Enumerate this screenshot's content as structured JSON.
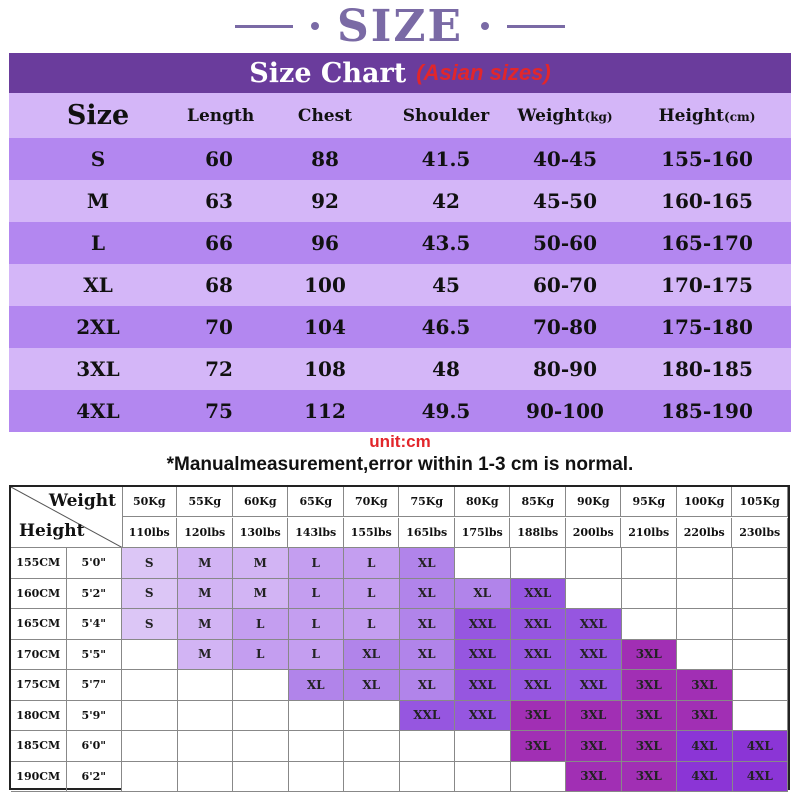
{
  "header": {
    "title": "SIZE"
  },
  "chart": {
    "title": "Size Chart",
    "subtitle": "(Asian sizes)",
    "columns": [
      "Size",
      "Length",
      "Chest",
      "Shoulder",
      "Weight",
      "Height"
    ],
    "column_units": {
      "weight": "(kg)",
      "height": "(cm)"
    },
    "rows": [
      [
        "S",
        "60",
        "88",
        "41.5",
        "40-45",
        "155-160"
      ],
      [
        "M",
        "63",
        "92",
        "42",
        "45-50",
        "160-165"
      ],
      [
        "L",
        "66",
        "96",
        "43.5",
        "50-60",
        "165-170"
      ],
      [
        "XL",
        "68",
        "100",
        "45",
        "60-70",
        "170-175"
      ],
      [
        "2XL",
        "70",
        "104",
        "46.5",
        "70-80",
        "175-180"
      ],
      [
        "3XL",
        "72",
        "108",
        "48",
        "80-90",
        "180-185"
      ],
      [
        "4XL",
        "75",
        "112",
        "49.5",
        "90-100",
        "185-190"
      ]
    ],
    "unit_note": "unit:cm",
    "measurement_note": "*Manualmeasurement,error within 1-3 cm is normal."
  },
  "grid": {
    "corner_weight": "Weight",
    "corner_height": "Height",
    "weights_kg": [
      "50Kg",
      "55Kg",
      "60Kg",
      "65Kg",
      "70Kg",
      "75Kg",
      "80Kg",
      "85Kg",
      "90Kg",
      "95Kg",
      "100Kg",
      "105Kg"
    ],
    "weights_lbs": [
      "110lbs",
      "120lbs",
      "130lbs",
      "143lbs",
      "155lbs",
      "165lbs",
      "175lbs",
      "188lbs",
      "200lbs",
      "210lbs",
      "220lbs",
      "230lbs"
    ],
    "rows": [
      {
        "cm": "155CM",
        "ft": "5'0\"",
        "sizes": [
          "S",
          "M",
          "M",
          "L",
          "L",
          "XL",
          "",
          "",
          "",
          "",
          "",
          ""
        ]
      },
      {
        "cm": "160CM",
        "ft": "5'2\"",
        "sizes": [
          "S",
          "M",
          "M",
          "L",
          "L",
          "XL",
          "XL",
          "XXL",
          "",
          "",
          "",
          ""
        ]
      },
      {
        "cm": "165CM",
        "ft": "5'4\"",
        "sizes": [
          "S",
          "M",
          "L",
          "L",
          "L",
          "XL",
          "XXL",
          "XXL",
          "XXL",
          "",
          "",
          ""
        ]
      },
      {
        "cm": "170CM",
        "ft": "5'5\"",
        "sizes": [
          "",
          "M",
          "L",
          "L",
          "XL",
          "XL",
          "XXL",
          "XXL",
          "XXL",
          "3XL",
          "",
          ""
        ]
      },
      {
        "cm": "175CM",
        "ft": "5'7\"",
        "sizes": [
          "",
          "",
          "",
          "XL",
          "XL",
          "XL",
          "XXL",
          "XXL",
          "XXL",
          "3XL",
          "3XL",
          ""
        ]
      },
      {
        "cm": "180CM",
        "ft": "5'9\"",
        "sizes": [
          "",
          "",
          "",
          "",
          "",
          "XXL",
          "XXL",
          "3XL",
          "3XL",
          "3XL",
          "3XL",
          ""
        ]
      },
      {
        "cm": "185CM",
        "ft": "6'0\"",
        "sizes": [
          "",
          "",
          "",
          "",
          "",
          "",
          "",
          "3XL",
          "3XL",
          "3XL",
          "4XL",
          "4XL"
        ]
      },
      {
        "cm": "190CM",
        "ft": "6'2\"",
        "sizes": [
          "",
          "",
          "",
          "",
          "",
          "",
          "",
          "",
          "3XL",
          "3XL",
          "4XL",
          "4XL"
        ]
      }
    ]
  },
  "colors": {
    "title": "#7a6aa5",
    "banner": "#6a3c9c",
    "row_light": "#d4b6f8",
    "row_dark": "#b387f0",
    "accent_red": "#e2262b",
    "size_S": "#dcc6f6",
    "size_M": "#d2b4f4",
    "size_L": "#c49ef0",
    "size_XL": "#b184ea",
    "size_XXL": "#9656e0",
    "size_3XL": "#a12fb4",
    "size_4XL": "#8b35d6"
  }
}
